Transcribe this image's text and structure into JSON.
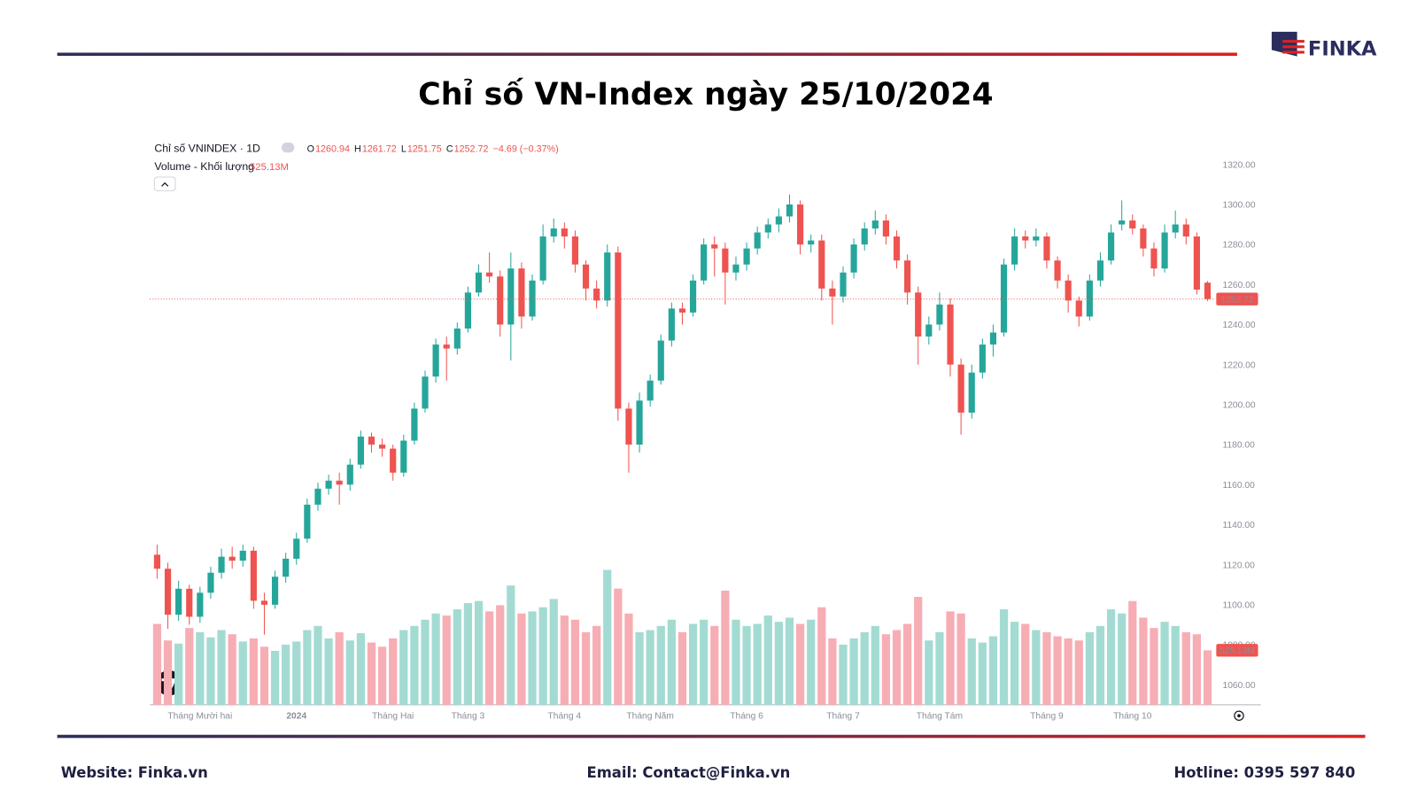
{
  "logo": {
    "text": "FINKA"
  },
  "chart_data": {
    "type": "candlestick",
    "title": "Chỉ số VN-Index ngày 25/10/2024",
    "symbol": "Chỉ số VNINDEX · 1D",
    "legend_keys": [
      "O",
      "H",
      "L",
      "C"
    ],
    "change": "−4.69 (−0.37%)",
    "volume_name": "Volume - Khối lượng",
    "volume_label": "525.13M",
    "categories": [
      null,
      null,
      null,
      null,
      "Tháng Mười hai",
      null,
      null,
      null,
      null,
      null,
      null,
      null,
      null,
      "2024",
      null,
      null,
      null,
      null,
      null,
      null,
      null,
      null,
      "Tháng Hai",
      null,
      null,
      null,
      null,
      null,
      null,
      "Tháng 3",
      null,
      null,
      null,
      null,
      null,
      null,
      null,
      null,
      "Tháng 4",
      null,
      null,
      null,
      null,
      null,
      null,
      null,
      "Tháng Năm",
      null,
      null,
      null,
      null,
      null,
      null,
      null,
      null,
      "Tháng 6",
      null,
      null,
      null,
      null,
      null,
      null,
      null,
      null,
      "Tháng 7",
      null,
      null,
      null,
      null,
      null,
      null,
      null,
      null,
      "Tháng Tám",
      null,
      null,
      null,
      null,
      null,
      null,
      null,
      null,
      null,
      "Tháng 9",
      null,
      null,
      null,
      null,
      null,
      null,
      null,
      "Tháng 10",
      null,
      null,
      null,
      null,
      null,
      null,
      null
    ],
    "ohlc": [
      [
        1125,
        1130,
        1113,
        1118
      ],
      [
        1118,
        1121,
        1088,
        1095
      ],
      [
        1095,
        1112,
        1092,
        1108
      ],
      [
        1108,
        1110,
        1090,
        1094
      ],
      [
        1094,
        1109,
        1091,
        1106
      ],
      [
        1106,
        1119,
        1103,
        1116
      ],
      [
        1116,
        1128,
        1113,
        1124
      ],
      [
        1124,
        1129,
        1118,
        1122
      ],
      [
        1122,
        1130,
        1119,
        1127
      ],
      [
        1127,
        1129,
        1098,
        1102
      ],
      [
        1102,
        1106,
        1085,
        1100
      ],
      [
        1100,
        1117,
        1098,
        1114
      ],
      [
        1114,
        1126,
        1111,
        1123
      ],
      [
        1123,
        1136,
        1120,
        1133
      ],
      [
        1133,
        1153,
        1131,
        1150
      ],
      [
        1150,
        1161,
        1147,
        1158
      ],
      [
        1158,
        1165,
        1155,
        1162
      ],
      [
        1162,
        1166,
        1150,
        1160
      ],
      [
        1160,
        1173,
        1157,
        1170
      ],
      [
        1170,
        1187,
        1168,
        1184
      ],
      [
        1184,
        1186,
        1176,
        1180
      ],
      [
        1180,
        1183,
        1174,
        1178
      ],
      [
        1178,
        1180,
        1162,
        1166
      ],
      [
        1166,
        1185,
        1164,
        1182
      ],
      [
        1182,
        1201,
        1180,
        1198
      ],
      [
        1198,
        1217,
        1196,
        1214
      ],
      [
        1214,
        1233,
        1211,
        1230
      ],
      [
        1230,
        1234,
        1212,
        1228
      ],
      [
        1228,
        1241,
        1225,
        1238
      ],
      [
        1238,
        1259,
        1236,
        1256
      ],
      [
        1256,
        1270,
        1254,
        1266
      ],
      [
        1266,
        1276,
        1261,
        1264
      ],
      [
        1264,
        1267,
        1234,
        1240
      ],
      [
        1240,
        1276,
        1222,
        1268
      ],
      [
        1268,
        1271,
        1238,
        1244
      ],
      [
        1244,
        1265,
        1242,
        1262
      ],
      [
        1262,
        1290,
        1260,
        1284
      ],
      [
        1284,
        1293,
        1281,
        1288
      ],
      [
        1288,
        1291,
        1278,
        1284
      ],
      [
        1284,
        1287,
        1266,
        1270
      ],
      [
        1270,
        1272,
        1252,
        1258
      ],
      [
        1258,
        1262,
        1248,
        1252
      ],
      [
        1252,
        1280,
        1249,
        1276
      ],
      [
        1276,
        1279,
        1192,
        1198
      ],
      [
        1198,
        1201,
        1166,
        1180
      ],
      [
        1180,
        1206,
        1176,
        1202
      ],
      [
        1202,
        1215,
        1199,
        1212
      ],
      [
        1212,
        1235,
        1210,
        1232
      ],
      [
        1232,
        1251,
        1229,
        1248
      ],
      [
        1248,
        1251,
        1240,
        1246
      ],
      [
        1246,
        1265,
        1244,
        1262
      ],
      [
        1262,
        1283,
        1260,
        1280
      ],
      [
        1280,
        1284,
        1264,
        1278
      ],
      [
        1278,
        1281,
        1250,
        1266
      ],
      [
        1266,
        1274,
        1262,
        1270
      ],
      [
        1270,
        1281,
        1267,
        1278
      ],
      [
        1278,
        1289,
        1275,
        1286
      ],
      [
        1286,
        1293,
        1283,
        1290
      ],
      [
        1290,
        1298,
        1286,
        1294
      ],
      [
        1294,
        1305,
        1291,
        1300
      ],
      [
        1300,
        1302,
        1275,
        1280
      ],
      [
        1280,
        1285,
        1276,
        1282
      ],
      [
        1282,
        1285,
        1252,
        1258
      ],
      [
        1258,
        1262,
        1240,
        1254
      ],
      [
        1254,
        1269,
        1251,
        1266
      ],
      [
        1266,
        1283,
        1263,
        1280
      ],
      [
        1280,
        1291,
        1277,
        1288
      ],
      [
        1288,
        1297,
        1285,
        1292
      ],
      [
        1292,
        1295,
        1280,
        1284
      ],
      [
        1284,
        1287,
        1268,
        1272
      ],
      [
        1272,
        1275,
        1250,
        1256
      ],
      [
        1256,
        1259,
        1220,
        1234
      ],
      [
        1234,
        1244,
        1230,
        1240
      ],
      [
        1240,
        1256,
        1237,
        1250
      ],
      [
        1250,
        1253,
        1214,
        1220
      ],
      [
        1220,
        1223,
        1185,
        1196
      ],
      [
        1196,
        1220,
        1193,
        1216
      ],
      [
        1216,
        1233,
        1213,
        1230
      ],
      [
        1230,
        1240,
        1224,
        1236
      ],
      [
        1236,
        1273,
        1234,
        1270
      ],
      [
        1270,
        1288,
        1267,
        1284
      ],
      [
        1284,
        1287,
        1278,
        1282
      ],
      [
        1282,
        1288,
        1279,
        1284
      ],
      [
        1284,
        1286,
        1268,
        1272
      ],
      [
        1272,
        1274,
        1258,
        1262
      ],
      [
        1262,
        1265,
        1246,
        1252
      ],
      [
        1252,
        1254,
        1239,
        1244
      ],
      [
        1244,
        1265,
        1242,
        1262
      ],
      [
        1262,
        1276,
        1259,
        1272
      ],
      [
        1272,
        1290,
        1270,
        1286
      ],
      [
        1290,
        1302,
        1287,
        1292
      ],
      [
        1292,
        1295,
        1285,
        1288
      ],
      [
        1288,
        1290,
        1274,
        1278
      ],
      [
        1278,
        1281,
        1264,
        1268
      ],
      [
        1268,
        1290,
        1266,
        1286
      ],
      [
        1286,
        1297,
        1283,
        1290
      ],
      [
        1290,
        1293,
        1280,
        1284
      ],
      [
        1284,
        1286,
        1255,
        1257.41
      ],
      [
        1260.94,
        1261.72,
        1251.75,
        1252.72
      ]
    ],
    "volume": [
      780,
      620,
      590,
      740,
      700,
      650,
      720,
      680,
      610,
      640,
      560,
      520,
      580,
      610,
      720,
      760,
      640,
      700,
      620,
      690,
      600,
      560,
      640,
      720,
      760,
      820,
      880,
      860,
      920,
      980,
      1000,
      900,
      960,
      1150,
      880,
      900,
      940,
      1020,
      860,
      820,
      700,
      760,
      1300,
      1120,
      880,
      700,
      720,
      760,
      820,
      700,
      780,
      820,
      760,
      1100,
      820,
      760,
      780,
      860,
      800,
      840,
      780,
      820,
      940,
      640,
      580,
      640,
      700,
      760,
      680,
      720,
      780,
      1040,
      620,
      700,
      900,
      880,
      640,
      600,
      660,
      920,
      800,
      780,
      720,
      700,
      660,
      640,
      620,
      700,
      760,
      920,
      880,
      1000,
      840,
      740,
      800,
      760,
      700,
      680,
      525.13
    ],
    "ylim": [
      1050,
      1330
    ],
    "yticks": [
      {
        "value": 1060,
        "label": "1060.00"
      },
      {
        "value": 1080,
        "label": "1080.00"
      },
      {
        "value": 1100,
        "label": "1100.00"
      },
      {
        "value": 1120,
        "label": "1120.00"
      },
      {
        "value": 1140,
        "label": "1140.00"
      },
      {
        "value": 1160,
        "label": "1160.00"
      },
      {
        "value": 1180,
        "label": "1180.00"
      },
      {
        "value": 1200,
        "label": "1200.00"
      },
      {
        "value": 1220,
        "label": "1220.00"
      },
      {
        "value": 1240,
        "label": "1240.00"
      },
      {
        "value": 1260,
        "label": "1260.00"
      },
      {
        "value": 1280,
        "label": "1280.00"
      },
      {
        "value": 1300,
        "label": "1300.00"
      },
      {
        "value": 1320,
        "label": "1320.00"
      }
    ],
    "y2lim": [
      0,
      5400
    ],
    "up_color": "#26a69a",
    "down_color": "#ef5350",
    "volume_up_color": "#a3dbd3",
    "volume_down_color": "#f7adb4"
  },
  "footer": {
    "website": "Website: Finka.vn",
    "email": "Email: Contact@Finka.vn",
    "hotline": "Hotline: 0395 597 840"
  }
}
